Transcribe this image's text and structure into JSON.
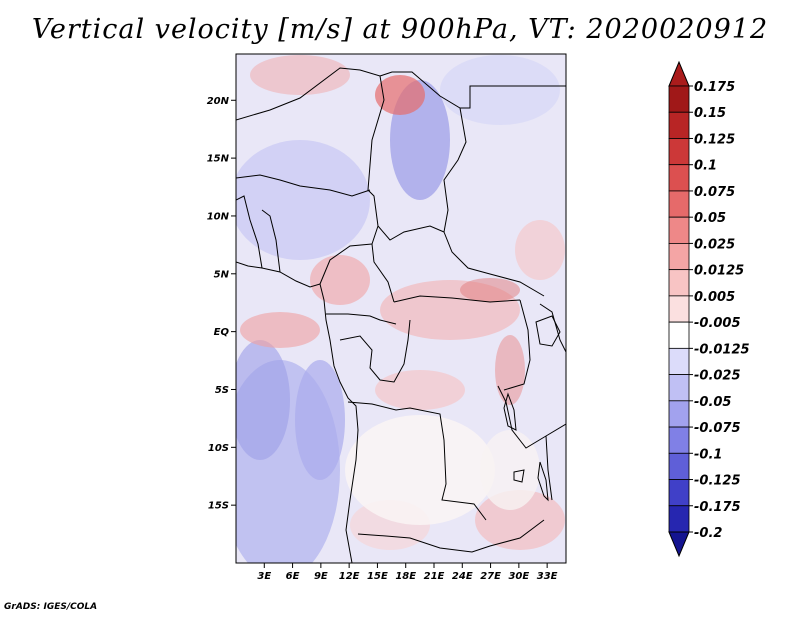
{
  "title": "Vertical velocity [m/s] at 900hPa, VT: 2020020912",
  "credit": "GrADS: IGES/COLA",
  "map": {
    "lon_range": [
      0,
      35
    ],
    "lat_range": [
      -20,
      24
    ],
    "lat_ticks": [
      {
        "value": 20,
        "label": "20N"
      },
      {
        "value": 15,
        "label": "15N"
      },
      {
        "value": 10,
        "label": "10N"
      },
      {
        "value": 5,
        "label": "5N"
      },
      {
        "value": 0,
        "label": "EQ"
      },
      {
        "value": -5,
        "label": "5S"
      },
      {
        "value": -10,
        "label": "10S"
      },
      {
        "value": -15,
        "label": "15S"
      }
    ],
    "lon_ticks": [
      {
        "value": 3,
        "label": "3E"
      },
      {
        "value": 6,
        "label": "6E"
      },
      {
        "value": 9,
        "label": "9E"
      },
      {
        "value": 12,
        "label": "12E"
      },
      {
        "value": 15,
        "label": "15E"
      },
      {
        "value": 18,
        "label": "18E"
      },
      {
        "value": 21,
        "label": "21E"
      },
      {
        "value": 24,
        "label": "24E"
      },
      {
        "value": 27,
        "label": "27E"
      },
      {
        "value": 30,
        "label": "30E"
      },
      {
        "value": 33,
        "label": "33E"
      }
    ]
  },
  "colorbar": {
    "levels": [
      {
        "label": "0.175",
        "color": "#a01818"
      },
      {
        "label": "0.15",
        "color": "#b82525"
      },
      {
        "label": "0.125",
        "color": "#cc3838"
      },
      {
        "label": "0.1",
        "color": "#dc5050"
      },
      {
        "label": "0.075",
        "color": "#e66a6a"
      },
      {
        "label": "0.05",
        "color": "#ee8888"
      },
      {
        "label": "0.025",
        "color": "#f4a5a5"
      },
      {
        "label": "0.0125",
        "color": "#f8c4c4"
      },
      {
        "label": "0.005",
        "color": "#fbe0e0"
      },
      {
        "label": "-0.005",
        "color": "#ffffff"
      },
      {
        "label": "-0.0125",
        "color": "#dcdcfa"
      },
      {
        "label": "-0.025",
        "color": "#c0c0f4"
      },
      {
        "label": "-0.05",
        "color": "#a2a2ee"
      },
      {
        "label": "-0.075",
        "color": "#8080e6"
      },
      {
        "label": "-0.1",
        "color": "#5f5fd8"
      },
      {
        "label": "-0.125",
        "color": "#4040c8"
      },
      {
        "label": "-0.175",
        "color": "#2626b0"
      },
      {
        "label": "-0.2",
        "color": "#18189a"
      }
    ],
    "top_color": "#aa1c1c",
    "bottom_color": "#141490"
  }
}
